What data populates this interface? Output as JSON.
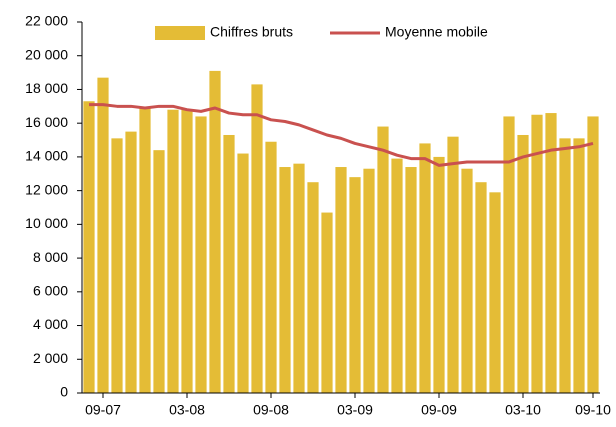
{
  "chart_data": {
    "type": "bar",
    "categories": [
      null,
      "09-07",
      null,
      null,
      null,
      null,
      null,
      "03-08",
      null,
      null,
      null,
      null,
      null,
      "09-08",
      null,
      null,
      null,
      null,
      null,
      "03-09",
      null,
      null,
      null,
      null,
      null,
      "09-09",
      null,
      null,
      null,
      null,
      null,
      "03-10",
      null,
      null,
      null,
      null,
      "09-10"
    ],
    "series": [
      {
        "name": "Chiffres bruts",
        "type": "bar",
        "color": "#e4bc36",
        "values": [
          17300,
          18700,
          15100,
          15500,
          16900,
          14400,
          16800,
          16800,
          16400,
          19100,
          15300,
          14200,
          18300,
          14900,
          13400,
          13600,
          12500,
          10700,
          13400,
          12800,
          13300,
          15800,
          13900,
          13400,
          14800,
          14000,
          15200,
          13300,
          12500,
          11900,
          16400,
          15300,
          16500,
          16600,
          15100,
          15100,
          16400
        ]
      },
      {
        "name": "Moyenne mobile",
        "type": "line",
        "color": "#c9514f",
        "values": [
          17100,
          17100,
          17000,
          17000,
          16900,
          17000,
          17000,
          16800,
          16700,
          16900,
          16600,
          16500,
          16500,
          16200,
          16100,
          15900,
          15600,
          15300,
          15100,
          14800,
          14600,
          14400,
          14100,
          13900,
          13900,
          13500,
          13600,
          13700,
          13700,
          13700,
          13700,
          14000,
          14200,
          14400,
          14500,
          14600,
          14800
        ]
      }
    ],
    "ylim": [
      0,
      22000
    ],
    "yticks": [
      0,
      {
        "value": 2000,
        "label": "2 000"
      },
      {
        "value": 4000,
        "label": "4 000"
      },
      {
        "value": 6000,
        "label": "6 000"
      },
      {
        "value": 8000,
        "label": "8 000"
      },
      {
        "value": 10000,
        "label": "10 000"
      },
      {
        "value": 12000,
        "label": "12 000"
      },
      {
        "value": 14000,
        "label": "14 000"
      },
      {
        "value": 16000,
        "label": "16 000"
      },
      {
        "value": 18000,
        "label": "18 000"
      },
      {
        "value": 20000,
        "label": "20 000"
      },
      {
        "value": 22000,
        "label": "22 000"
      }
    ],
    "grid": false,
    "legend": "top"
  }
}
